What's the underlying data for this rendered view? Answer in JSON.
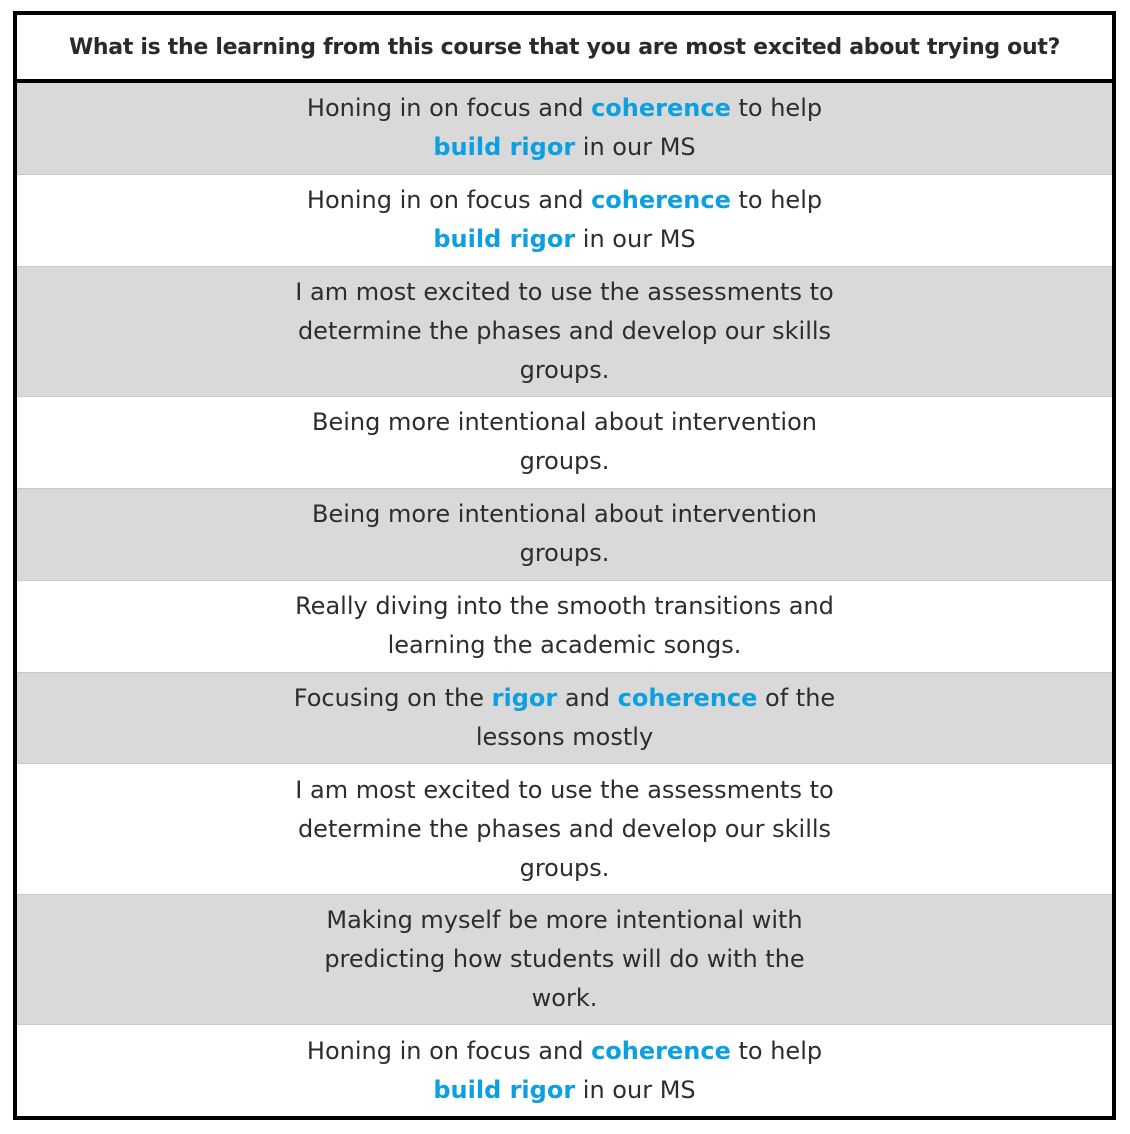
{
  "table": {
    "header": "What is the learning from this course that you are most excited about trying out?",
    "highlight_color": "#0da0e0",
    "rows": [
      {
        "shade": "gray",
        "lines": [
          [
            {
              "t": "Honing in on focus and "
            },
            {
              "t": "coherence",
              "hl": true
            },
            {
              "t": " to help"
            }
          ],
          [
            {
              "t": "build rigor",
              "hl": true
            },
            {
              "t": " in our MS"
            }
          ]
        ]
      },
      {
        "shade": "white",
        "lines": [
          [
            {
              "t": "Honing in on focus and "
            },
            {
              "t": "coherence",
              "hl": true
            },
            {
              "t": " to help"
            }
          ],
          [
            {
              "t": "build rigor",
              "hl": true
            },
            {
              "t": " in our MS"
            }
          ]
        ]
      },
      {
        "shade": "gray",
        "lines": [
          [
            {
              "t": "I am most excited to use the assessments to"
            }
          ],
          [
            {
              "t": "determine the phases and develop our skills"
            }
          ],
          [
            {
              "t": "groups."
            }
          ]
        ]
      },
      {
        "shade": "white",
        "lines": [
          [
            {
              "t": "Being more intentional about intervention"
            }
          ],
          [
            {
              "t": "groups."
            }
          ]
        ]
      },
      {
        "shade": "gray",
        "lines": [
          [
            {
              "t": "Being more intentional about intervention"
            }
          ],
          [
            {
              "t": "groups."
            }
          ]
        ]
      },
      {
        "shade": "white",
        "lines": [
          [
            {
              "t": "Really diving into the smooth transitions and"
            }
          ],
          [
            {
              "t": "learning the academic songs."
            }
          ]
        ]
      },
      {
        "shade": "gray",
        "lines": [
          [
            {
              "t": "Focusing on the "
            },
            {
              "t": "rigor",
              "hl": true
            },
            {
              "t": " and "
            },
            {
              "t": "coherence",
              "hl": true
            },
            {
              "t": " of the"
            }
          ],
          [
            {
              "t": "lessons mostly"
            }
          ]
        ]
      },
      {
        "shade": "white",
        "lines": [
          [
            {
              "t": "I am most excited to use the assessments to"
            }
          ],
          [
            {
              "t": "determine the phases and develop our skills"
            }
          ],
          [
            {
              "t": "groups."
            }
          ]
        ]
      },
      {
        "shade": "gray",
        "lines": [
          [
            {
              "t": "Making myself be more intentional with"
            }
          ],
          [
            {
              "t": "predicting how students will do with the"
            }
          ],
          [
            {
              "t": "work."
            }
          ]
        ]
      },
      {
        "shade": "white",
        "lines": [
          [
            {
              "t": "Honing in on focus and "
            },
            {
              "t": "coherence",
              "hl": true
            },
            {
              "t": " to help"
            }
          ],
          [
            {
              "t": "build rigor",
              "hl": true
            },
            {
              "t": " in our MS"
            }
          ]
        ]
      }
    ]
  }
}
